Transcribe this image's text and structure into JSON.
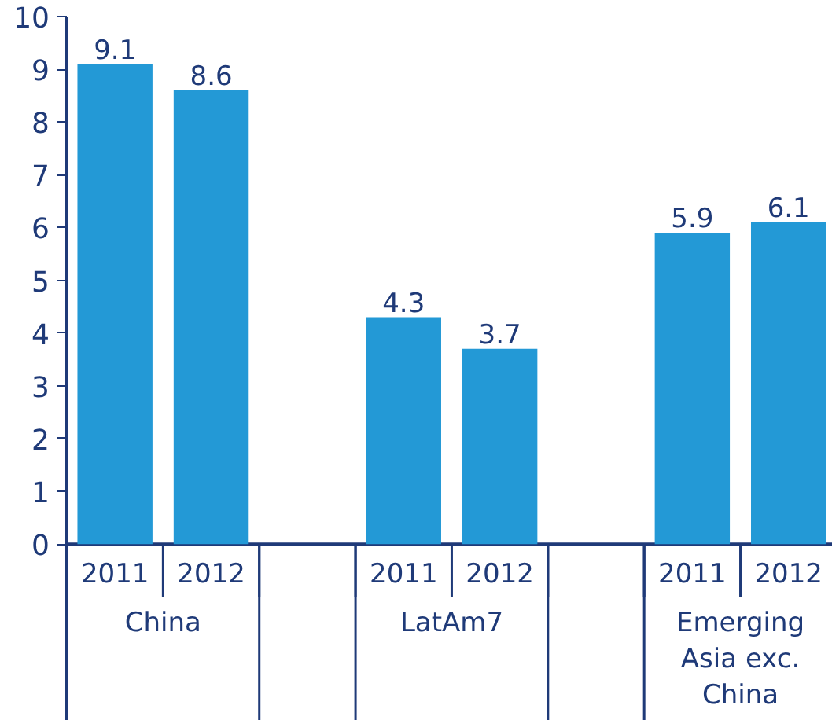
{
  "chart_data": {
    "type": "bar",
    "categories": [
      "China",
      "LatAm7",
      "Emerging Asia exc. China"
    ],
    "series": [
      {
        "name": "2011",
        "color": "#2399d6",
        "values": [
          9.1,
          4.3,
          5.9
        ]
      },
      {
        "name": "2012",
        "color": "#2399d6",
        "values": [
          8.6,
          3.7,
          6.1
        ]
      }
    ],
    "ylim": [
      0,
      10
    ],
    "yticks": [
      0,
      1,
      2,
      3,
      4,
      5,
      6,
      7,
      8,
      9,
      10
    ],
    "data_labels": true,
    "grid": false
  }
}
